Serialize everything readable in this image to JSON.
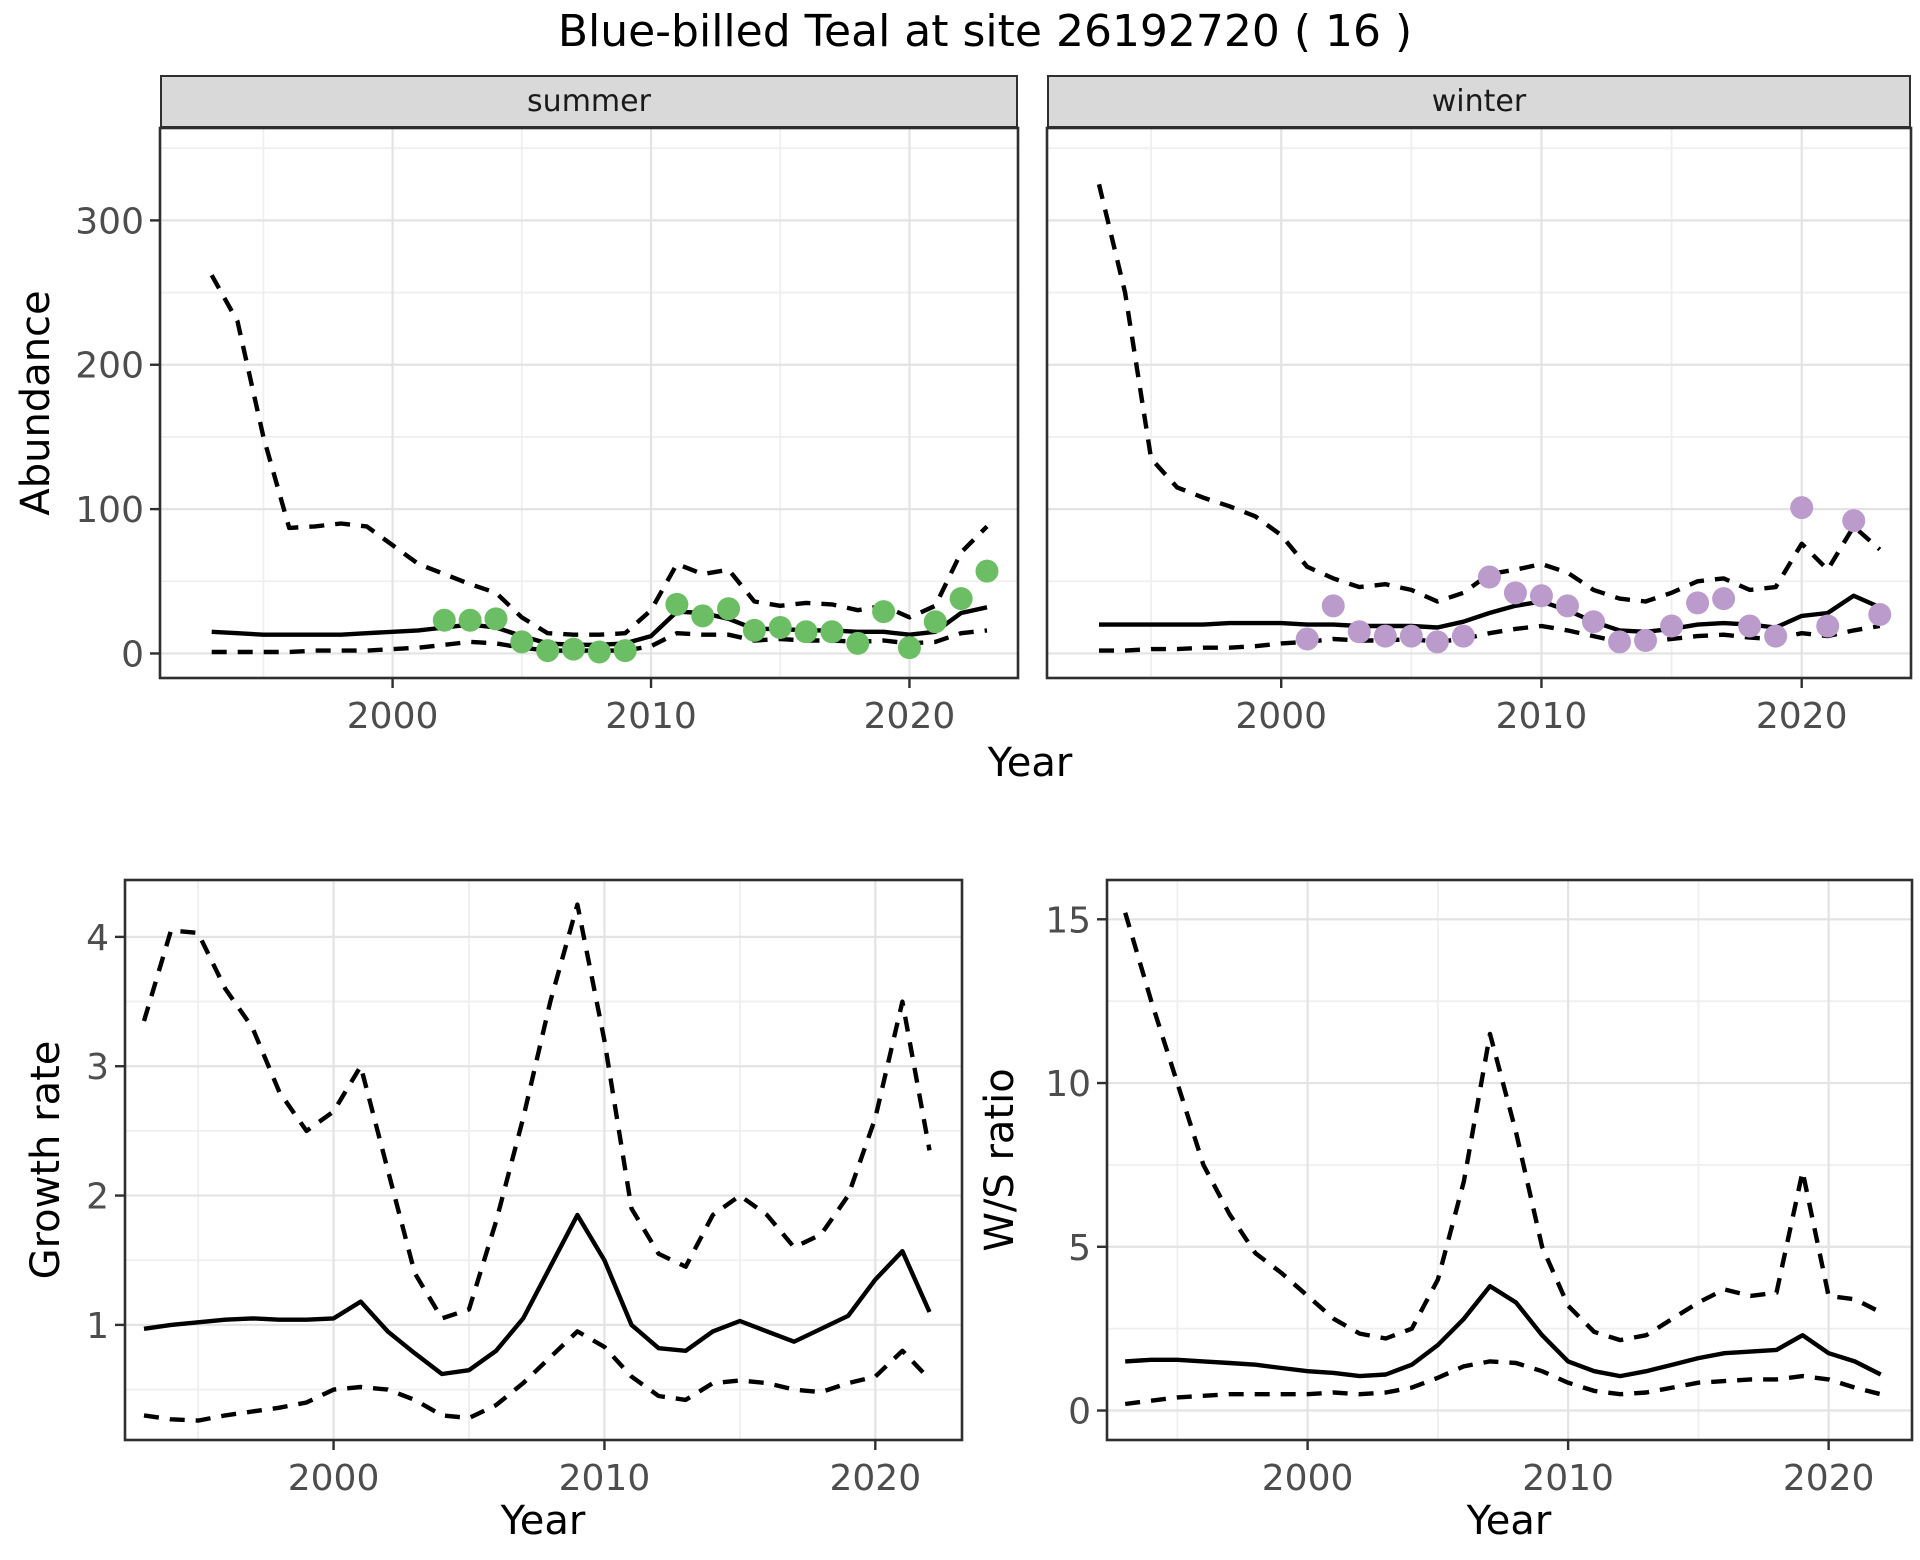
{
  "page": {
    "title": "Blue-billed Teal at site 26192720 ( 16 )"
  },
  "colors": {
    "point_summer": "#6BBE63",
    "point_winter": "#BA9BCB",
    "line": "#000000",
    "strip_bg": "#D9D9D9",
    "panel_border": "#2F2F2F",
    "grid_major": "#E3E3E3",
    "grid_minor": "#EFEFEF",
    "tick_label": "#4D4D4D"
  },
  "chart_data": [
    {
      "type": "line",
      "facet_label": "summer",
      "xlabel": "Year",
      "ylabel": "Abundance",
      "xlim": [
        1991.0,
        2024.2
      ],
      "ylim": [
        -17,
        364
      ],
      "xticks": [
        2000,
        2010,
        2020
      ],
      "xticks_minor": [
        1995,
        2005,
        2015
      ],
      "yticks": [
        0,
        100,
        200,
        300
      ],
      "yticks_minor": [
        50,
        150,
        250,
        350
      ],
      "x": [
        1993,
        1994,
        1995,
        1996,
        1997,
        1998,
        1999,
        2000,
        2001,
        2002,
        2003,
        2004,
        2005,
        2006,
        2007,
        2008,
        2009,
        2010,
        2011,
        2012,
        2013,
        2014,
        2015,
        2016,
        2017,
        2018,
        2019,
        2020,
        2021,
        2022,
        2023
      ],
      "series": [
        {
          "name": "median",
          "style": "solid",
          "values": [
            15,
            14,
            13,
            13,
            13,
            13,
            14,
            15,
            16,
            18,
            20,
            18,
            12,
            7,
            6,
            6,
            7,
            12,
            29,
            28,
            24,
            17,
            17,
            16,
            16,
            15,
            15,
            13,
            15,
            28,
            32
          ]
        },
        {
          "name": "upper_ci",
          "style": "dashed",
          "values": [
            262,
            230,
            150,
            87,
            88,
            90,
            88,
            75,
            62,
            55,
            48,
            42,
            25,
            14,
            13,
            13,
            14,
            30,
            62,
            55,
            58,
            36,
            33,
            35,
            34,
            30,
            33,
            25,
            33,
            70,
            88
          ]
        },
        {
          "name": "lower_ci",
          "style": "dashed",
          "values": [
            1,
            1,
            1,
            1,
            2,
            2,
            2,
            3,
            4,
            6,
            8,
            7,
            4,
            2,
            2,
            2,
            2,
            5,
            14,
            13,
            13,
            9,
            10,
            9,
            9,
            8,
            9,
            7,
            8,
            14,
            16
          ]
        }
      ],
      "points": {
        "name": "summer-observed-counts",
        "color_key": "point_summer",
        "x": [
          2002,
          2003,
          2004,
          2005,
          2006,
          2007,
          2008,
          2009,
          2011,
          2012,
          2013,
          2014,
          2015,
          2016,
          2017,
          2018,
          2019,
          2020,
          2021,
          2022,
          2023
        ],
        "values": [
          23,
          23,
          24,
          8,
          2,
          3,
          1,
          2,
          34,
          26,
          31,
          16,
          18,
          15,
          15,
          7,
          29,
          4,
          22,
          38,
          57
        ]
      }
    },
    {
      "type": "line",
      "facet_label": "winter",
      "xlabel": "Year",
      "ylabel": "Abundance",
      "ytick_labels": false,
      "xlim": [
        1991.0,
        2024.2
      ],
      "ylim": [
        -17,
        364
      ],
      "xticks": [
        2000,
        2010,
        2020
      ],
      "xticks_minor": [
        1995,
        2005,
        2015
      ],
      "yticks": [
        0,
        100,
        200,
        300
      ],
      "yticks_minor": [
        50,
        150,
        250,
        350
      ],
      "x": [
        1993,
        1994,
        1995,
        1996,
        1997,
        1998,
        1999,
        2000,
        2001,
        2002,
        2003,
        2004,
        2005,
        2006,
        2007,
        2008,
        2009,
        2010,
        2011,
        2012,
        2013,
        2014,
        2015,
        2016,
        2017,
        2018,
        2019,
        2020,
        2021,
        2022,
        2023
      ],
      "series": [
        {
          "name": "median",
          "style": "solid",
          "values": [
            20,
            20,
            20,
            20,
            20,
            21,
            21,
            21,
            20,
            20,
            19,
            19,
            19,
            18,
            22,
            28,
            33,
            36,
            30,
            22,
            16,
            15,
            17,
            20,
            21,
            20,
            18,
            26,
            28,
            40,
            32
          ]
        },
        {
          "name": "upper_ci",
          "style": "dashed",
          "values": [
            325,
            250,
            135,
            115,
            108,
            102,
            95,
            82,
            60,
            52,
            46,
            48,
            44,
            36,
            42,
            55,
            58,
            62,
            56,
            44,
            38,
            36,
            42,
            50,
            52,
            44,
            46,
            76,
            58,
            88,
            72
          ]
        },
        {
          "name": "lower_ci",
          "style": "dashed",
          "values": [
            2,
            2,
            3,
            3,
            4,
            4,
            5,
            7,
            8,
            10,
            9,
            9,
            10,
            8,
            10,
            14,
            17,
            19,
            16,
            12,
            8,
            8,
            10,
            12,
            13,
            11,
            10,
            14,
            12,
            16,
            19
          ]
        }
      ],
      "points": {
        "name": "winter-observed-counts",
        "color_key": "point_winter",
        "x": [
          2001,
          2002,
          2003,
          2004,
          2005,
          2006,
          2007,
          2008,
          2009,
          2010,
          2011,
          2012,
          2013,
          2014,
          2015,
          2016,
          2017,
          2018,
          2019,
          2020,
          2021,
          2022,
          2023
        ],
        "values": [
          10,
          33,
          15,
          12,
          12,
          8,
          12,
          53,
          42,
          40,
          33,
          22,
          8,
          9,
          19,
          35,
          38,
          19,
          12,
          101,
          19,
          92,
          27
        ]
      }
    },
    {
      "type": "line",
      "xlabel": "Year",
      "ylabel": "Growth rate",
      "xlim": [
        1992.3,
        2023.2
      ],
      "ylim": [
        0.11,
        4.44
      ],
      "xticks": [
        2000,
        2010,
        2020
      ],
      "xticks_minor": [
        1995,
        2005,
        2015
      ],
      "yticks": [
        1,
        2,
        3,
        4
      ],
      "yticks_minor": [
        0.5,
        1.5,
        2.5,
        3.5
      ],
      "x": [
        1993,
        1994,
        1995,
        1996,
        1997,
        1998,
        1999,
        2000,
        2001,
        2002,
        2003,
        2004,
        2005,
        2006,
        2007,
        2008,
        2009,
        2010,
        2011,
        2012,
        2013,
        2014,
        2015,
        2016,
        2017,
        2018,
        2019,
        2020,
        2021,
        2022
      ],
      "series": [
        {
          "name": "median",
          "style": "solid",
          "values": [
            0.97,
            1.0,
            1.02,
            1.04,
            1.05,
            1.04,
            1.04,
            1.05,
            1.18,
            0.95,
            0.78,
            0.62,
            0.65,
            0.8,
            1.05,
            1.45,
            1.85,
            1.5,
            1.0,
            0.82,
            0.8,
            0.95,
            1.03,
            0.95,
            0.87,
            0.97,
            1.07,
            1.35,
            1.57,
            1.1
          ]
        },
        {
          "name": "upper_ci",
          "style": "dashed",
          "values": [
            3.35,
            4.05,
            4.03,
            3.6,
            3.3,
            2.8,
            2.5,
            2.65,
            3.0,
            2.2,
            1.4,
            1.05,
            1.12,
            1.8,
            2.6,
            3.5,
            4.25,
            3.2,
            1.9,
            1.55,
            1.45,
            1.85,
            2.0,
            1.85,
            1.6,
            1.7,
            2.0,
            2.6,
            3.5,
            2.35
          ]
        },
        {
          "name": "lower_ci",
          "style": "dashed",
          "values": [
            0.3,
            0.27,
            0.26,
            0.3,
            0.33,
            0.36,
            0.4,
            0.5,
            0.52,
            0.5,
            0.42,
            0.3,
            0.28,
            0.38,
            0.55,
            0.75,
            0.95,
            0.83,
            0.6,
            0.45,
            0.42,
            0.55,
            0.57,
            0.55,
            0.5,
            0.48,
            0.55,
            0.6,
            0.8,
            0.58
          ]
        }
      ]
    },
    {
      "type": "line",
      "xlabel": "Year",
      "ylabel": "W/S ratio",
      "xlim": [
        1992.3,
        2023.2
      ],
      "ylim": [
        -0.9,
        16.2
      ],
      "xticks": [
        2000,
        2010,
        2020
      ],
      "xticks_minor": [
        1995,
        2005,
        2015
      ],
      "yticks": [
        0,
        5,
        10,
        15
      ],
      "yticks_minor": [
        2.5,
        7.5,
        12.5
      ],
      "x": [
        1993,
        1994,
        1995,
        1996,
        1997,
        1998,
        1999,
        2000,
        2001,
        2002,
        2003,
        2004,
        2005,
        2006,
        2007,
        2008,
        2009,
        2010,
        2011,
        2012,
        2013,
        2014,
        2015,
        2016,
        2017,
        2018,
        2019,
        2020,
        2021,
        2022
      ],
      "series": [
        {
          "name": "median",
          "style": "solid",
          "values": [
            1.5,
            1.55,
            1.55,
            1.5,
            1.45,
            1.4,
            1.3,
            1.2,
            1.15,
            1.05,
            1.1,
            1.4,
            2.0,
            2.8,
            3.8,
            3.3,
            2.3,
            1.5,
            1.2,
            1.05,
            1.2,
            1.4,
            1.6,
            1.75,
            1.8,
            1.85,
            2.3,
            1.75,
            1.5,
            1.1
          ]
        },
        {
          "name": "upper_ci",
          "style": "dashed",
          "values": [
            15.2,
            12.5,
            10.0,
            7.5,
            6.0,
            4.8,
            4.2,
            3.5,
            2.8,
            2.35,
            2.2,
            2.5,
            4.0,
            7.0,
            11.5,
            8.5,
            5.0,
            3.2,
            2.4,
            2.15,
            2.3,
            2.8,
            3.3,
            3.7,
            3.5,
            3.6,
            7.3,
            3.5,
            3.4,
            3.0
          ]
        },
        {
          "name": "lower_ci",
          "style": "dashed",
          "values": [
            0.2,
            0.3,
            0.4,
            0.45,
            0.5,
            0.5,
            0.5,
            0.5,
            0.55,
            0.5,
            0.55,
            0.7,
            1.0,
            1.35,
            1.5,
            1.45,
            1.2,
            0.85,
            0.6,
            0.5,
            0.55,
            0.7,
            0.85,
            0.9,
            0.95,
            0.95,
            1.05,
            0.95,
            0.7,
            0.5
          ]
        }
      ]
    }
  ]
}
